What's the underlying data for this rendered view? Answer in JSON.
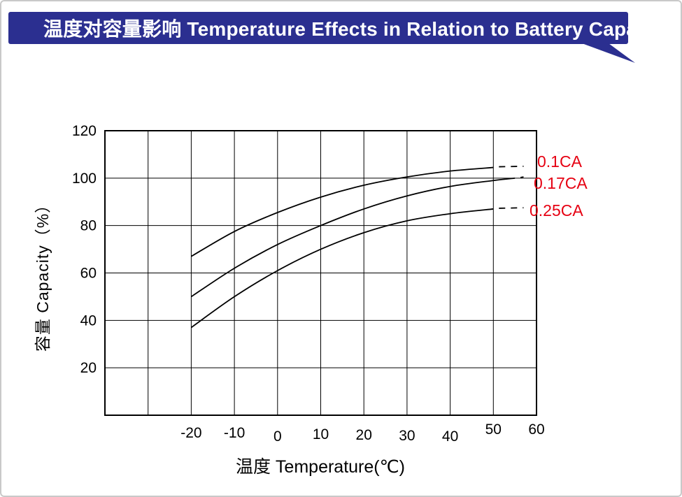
{
  "banner": {
    "text": "温度对容量影响  Temperature Effects in Relation to Battery Capacity",
    "color": "#2b2f90",
    "text_color": "#ffffff"
  },
  "chart_data": {
    "type": "line",
    "title": "温度对容量影响 Temperature Effects in Relation to Battery Capacity",
    "xlabel": "温度  Temperature(℃)",
    "ylabel": "容量  Capacity（%）",
    "xlim": [
      -40,
      60
    ],
    "ylim": [
      0,
      120
    ],
    "x_grid_step": 10,
    "y_grid_step": 20,
    "grid": true,
    "x_tick_labels": [
      "-20",
      "-10",
      "0",
      "10",
      "20",
      "30",
      "40",
      "50",
      "60"
    ],
    "x_tick_values": [
      -20,
      -10,
      0,
      10,
      20,
      30,
      40,
      50,
      60
    ],
    "y_tick_labels": [
      "120",
      "100",
      "80",
      "60",
      "40",
      "20"
    ],
    "y_tick_values": [
      120,
      100,
      80,
      60,
      40,
      20
    ],
    "curve_color": "#000000",
    "label_color": "#e60012",
    "legend_position": "right-of-curves",
    "series": [
      {
        "name": "0.1CA",
        "x": [
          -20,
          -10,
          0,
          10,
          20,
          30,
          40,
          50
        ],
        "y": [
          67,
          77.5,
          85.5,
          92,
          97,
          100.5,
          103,
          104.5
        ],
        "dash_end": {
          "x": 57,
          "y": 105
        }
      },
      {
        "name": "0.17CA",
        "x": [
          -20,
          -10,
          0,
          10,
          20,
          30,
          40,
          50,
          55
        ],
        "y": [
          50,
          62,
          72,
          80,
          87,
          92.5,
          96.5,
          99,
          100
        ],
        "dash_end": {
          "x": 57,
          "y": 100.5
        }
      },
      {
        "name": "0.25CA",
        "x": [
          -20,
          -10,
          0,
          10,
          20,
          30,
          40,
          50
        ],
        "y": [
          37,
          50,
          61,
          70,
          77,
          82,
          85,
          87
        ],
        "dash_end": {
          "x": 57,
          "y": 87.5
        }
      }
    ]
  }
}
